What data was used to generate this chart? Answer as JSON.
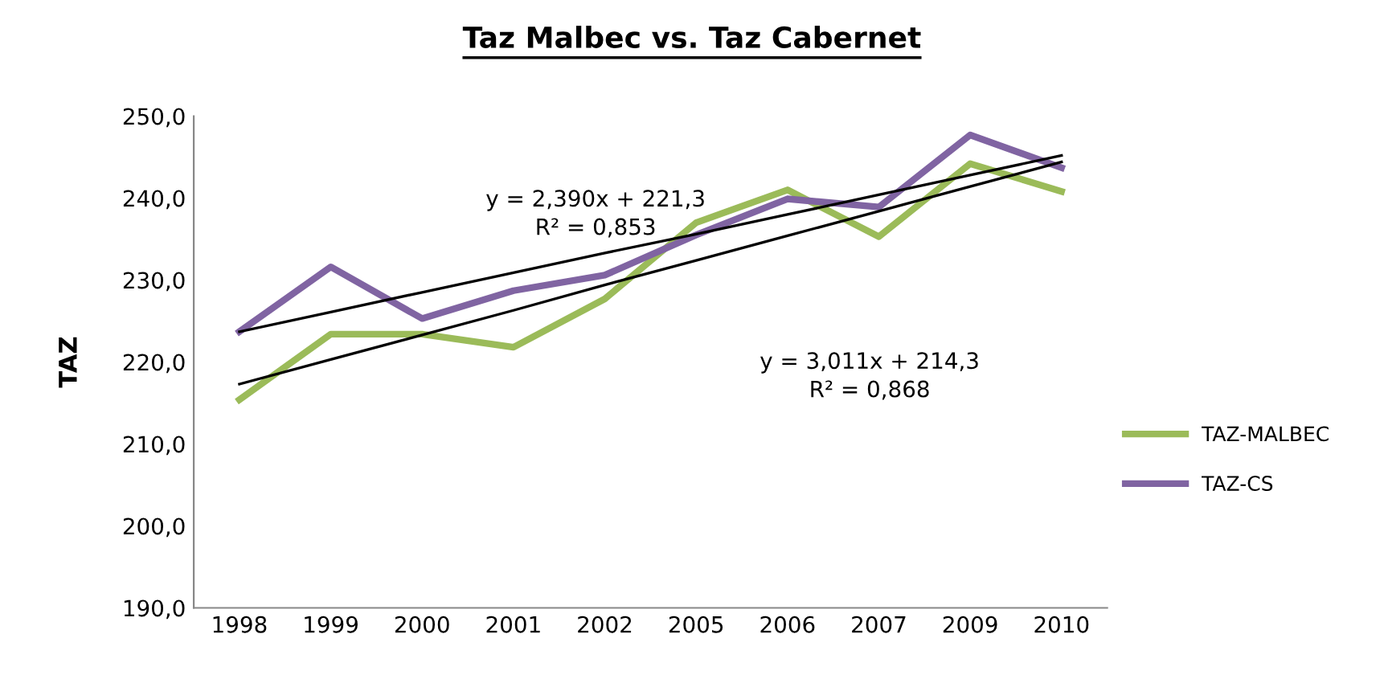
{
  "chart_data": {
    "type": "line",
    "title": "Taz Malbec vs. Taz Cabernet",
    "ylabel": "TAZ",
    "categories": [
      "1998",
      "1999",
      "2000",
      "2001",
      "2002",
      "2005",
      "2006",
      "2007",
      "2009",
      "2010"
    ],
    "series": [
      {
        "name": "TAZ-MALBEC",
        "color": "#9bbb59",
        "values": [
          215.4,
          223.4,
          223.4,
          221.8,
          227.7,
          237.0,
          241.0,
          235.3,
          244.2,
          240.8
        ]
      },
      {
        "name": "TAZ-CS",
        "color": "#8064a2",
        "values": [
          223.7,
          231.6,
          225.3,
          228.7,
          230.6,
          235.5,
          239.9,
          238.9,
          247.7,
          243.7
        ]
      },
      {
        "color": "#000000",
        "values": [
          223.7,
          226.1,
          228.5,
          230.9,
          233.3,
          235.6,
          238.0,
          240.4,
          242.8,
          245.2
        ]
      },
      {
        "color": "#000000",
        "values": [
          217.3,
          220.3,
          223.3,
          226.3,
          229.4,
          232.4,
          235.4,
          238.4,
          241.4,
          244.4
        ]
      }
    ],
    "ylim": [
      190,
      250
    ],
    "yticks": [
      {
        "value": 190,
        "label": "190,0"
      },
      {
        "value": 200,
        "label": "200,0"
      },
      {
        "value": 210,
        "label": "210,0"
      },
      {
        "value": 220,
        "label": "220,0"
      },
      {
        "value": 230,
        "label": "230,0"
      },
      {
        "value": 240,
        "label": "240,0"
      },
      {
        "value": 250,
        "label": "250,0"
      }
    ],
    "annotations": [
      "y = 2,390x + 221,3\nR² = 0,853",
      "y = 3,011x + 214,3\nR² = 0,868"
    ],
    "legend": "right",
    "grid": false,
    "marker": "none",
    "line_style": "solid"
  }
}
